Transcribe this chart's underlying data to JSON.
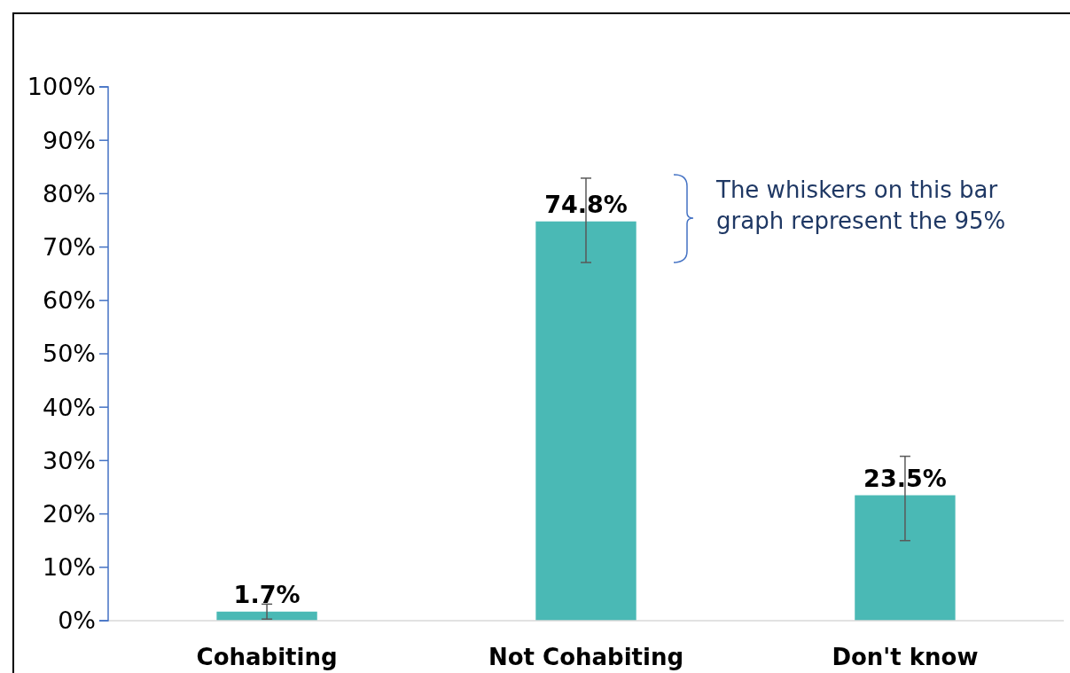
{
  "chart_data": {
    "type": "bar",
    "categories": [
      "Cohabiting",
      "Not Cohabiting",
      "Don't know"
    ],
    "values": [
      1.7,
      74.8,
      23.5
    ],
    "color": "#4ab9b5",
    "errors": [
      [
        0.3,
        3.1
      ],
      [
        67.1,
        82.9
      ],
      [
        15.0,
        30.8
      ]
    ],
    "ylim": [
      0,
      100
    ],
    "yticks": [
      {
        "value": 0,
        "label": "0%"
      },
      {
        "value": 10,
        "label": "10%"
      },
      {
        "value": 20,
        "label": "20%"
      },
      {
        "value": 30,
        "label": "30%"
      },
      {
        "value": 40,
        "label": "40%"
      },
      {
        "value": 50,
        "label": "50%"
      },
      {
        "value": 60,
        "label": "60%"
      },
      {
        "value": 70,
        "label": "70%"
      },
      {
        "value": 80,
        "label": "80%"
      },
      {
        "value": 90,
        "label": "90%"
      },
      {
        "value": 100,
        "label": "100%"
      }
    ],
    "value_labels": [
      "1.7%",
      "74.8%",
      "23.5%"
    ],
    "annotations": [
      "The whiskers on this bar graph represent the 95%"
    ],
    "grid": false
  }
}
